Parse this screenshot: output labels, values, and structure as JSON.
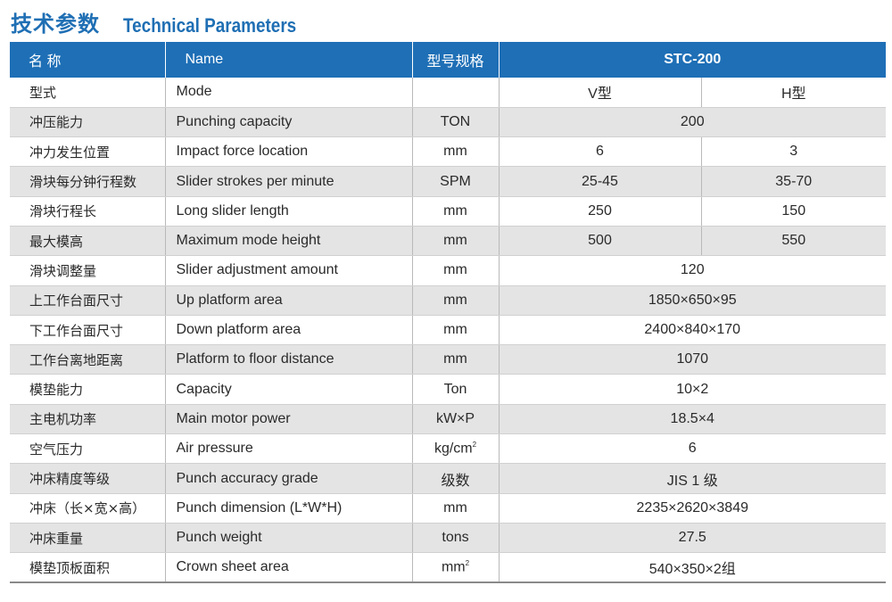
{
  "heading": {
    "zh": "技术参数",
    "en": "Technical Parameters"
  },
  "header": {
    "name_zh": "名 称",
    "name_en": "Name",
    "spec": "型号规格",
    "model": "STC-200"
  },
  "rows": [
    {
      "zh": "型式",
      "en": "Mode",
      "unit": "",
      "v": "V型",
      "h": "H型"
    },
    {
      "zh": "冲压能力",
      "en": "Punching capacity",
      "unit": "TON",
      "value": "200"
    },
    {
      "zh": "冲力发生位置",
      "en": "Impact force location",
      "unit": "mm",
      "v": "6",
      "h": "3"
    },
    {
      "zh": "滑块每分钟行程数",
      "en": "Slider strokes per minute",
      "unit": "SPM",
      "v": "25-45",
      "h": "35-70"
    },
    {
      "zh": "滑块行程长",
      "en": "Long slider length",
      "unit": "mm",
      "v": "250",
      "h": "150"
    },
    {
      "zh": "最大模高",
      "en": "Maximum mode height",
      "unit": "mm",
      "v": "500",
      "h": "550"
    },
    {
      "zh": "滑块调整量",
      "en": "Slider adjustment amount",
      "unit": "mm",
      "value": "120"
    },
    {
      "zh": "上工作台面尺寸",
      "en": "Up platform area",
      "unit": "mm",
      "value": "1850×650×95"
    },
    {
      "zh": "下工作台面尺寸",
      "en": "Down platform area",
      "unit": "mm",
      "value": "2400×840×170"
    },
    {
      "zh": "工作台离地距离",
      "en": "Platform to floor distance",
      "unit": "mm",
      "value": "1070"
    },
    {
      "zh": "模垫能力",
      "en": "Capacity",
      "unit": "Ton",
      "value": "10×2"
    },
    {
      "zh": "主电机功率",
      "en": "Main motor power",
      "unit": "kW×P",
      "value": "18.5×4"
    },
    {
      "zh": "空气压力",
      "en": "Air pressure",
      "unit": "kg/cm",
      "unit_sup": "2",
      "value": "6"
    },
    {
      "zh": "冲床精度等级",
      "en": "Punch accuracy grade",
      "unit": "级数",
      "value": "JIS 1 级"
    },
    {
      "zh": "冲床（长×宽×高）",
      "en": "Punch dimension (L*W*H)",
      "unit": "mm",
      "value": "2235×2620×3849"
    },
    {
      "zh": "冲床重量",
      "en": "Punch weight",
      "unit": "tons",
      "value": "27.5"
    },
    {
      "zh": "模垫顶板面积",
      "en": "Crown sheet area",
      "unit": "mm",
      "unit_sup": "2",
      "value": "540×350×2组"
    }
  ]
}
